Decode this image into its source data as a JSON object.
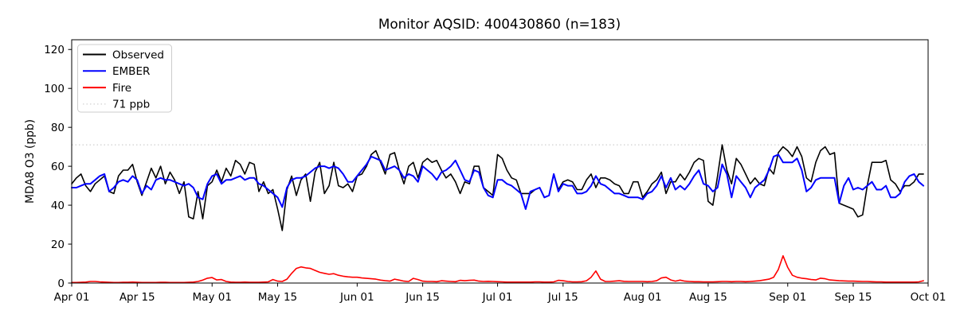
{
  "title": "Monitor AQSID: 400430860 (n=183)",
  "axes": {
    "ylabel": "MDA8 O3 (ppb)",
    "xlabel": "",
    "yticks": [
      0,
      20,
      40,
      60,
      80,
      100,
      120
    ],
    "xtick_labels": [
      "Apr 01",
      "Apr 15",
      "May 01",
      "May 15",
      "Jun 01",
      "Jun 15",
      "Jul 01",
      "Jul 15",
      "Aug 01",
      "Aug 15",
      "Sep 01",
      "Sep 15",
      "Oct 01"
    ],
    "xtick_days": [
      0,
      14,
      30,
      44,
      61,
      75,
      91,
      105,
      122,
      136,
      153,
      167,
      183
    ]
  },
  "legend": {
    "position": "upper left",
    "entries": [
      {
        "label": "Observed",
        "color": "#000000",
        "style": "solid"
      },
      {
        "label": "EMBER",
        "color": "#0000ff",
        "style": "solid"
      },
      {
        "label": "Fire",
        "color": "#ff0000",
        "style": "solid"
      },
      {
        "label": "71 ppb",
        "color": "#d3d3d3",
        "style": "dotted"
      }
    ]
  },
  "chart_data": {
    "type": "line",
    "title": "Monitor AQSID: 400430860 (n=183)",
    "xlabel": "",
    "ylabel": "MDA8 O3 (ppb)",
    "x_start": "Apr 01",
    "x_end": "Sep 30",
    "n_points": 183,
    "ylim": [
      0,
      125
    ],
    "grid": false,
    "legend_position": "upper left",
    "reference_line": {
      "label": "71 ppb",
      "value": 71,
      "color": "#d3d3d3",
      "style": "dotted"
    },
    "series": [
      {
        "name": "Observed",
        "color": "#000000",
        "width": 1.6,
        "values": [
          51,
          54,
          56,
          50,
          47,
          51,
          53,
          55,
          47,
          46,
          55,
          58,
          58,
          61,
          52,
          45,
          52,
          59,
          54,
          60,
          51,
          57,
          53,
          46,
          52,
          34,
          33,
          47,
          33,
          50,
          52,
          58,
          52,
          59,
          55,
          63,
          61,
          56,
          62,
          61,
          47,
          52,
          46,
          48,
          38,
          27,
          48,
          55,
          45,
          53,
          56,
          42,
          57,
          62,
          46,
          50,
          62,
          50,
          49,
          51,
          47,
          55,
          56,
          60,
          66,
          68,
          62,
          56,
          66,
          67,
          58,
          51,
          60,
          62,
          54,
          62,
          64,
          62,
          63,
          58,
          54,
          56,
          52,
          46,
          52,
          51,
          60,
          60,
          49,
          47,
          45,
          66,
          64,
          58,
          54,
          53,
          46,
          46,
          46,
          48,
          49,
          44,
          45,
          56,
          48,
          52,
          53,
          52,
          48,
          48,
          53,
          56,
          49,
          54,
          54,
          53,
          51,
          50,
          46,
          46,
          52,
          52,
          44,
          47,
          51,
          53,
          57,
          46,
          52,
          52,
          56,
          53,
          57,
          62,
          64,
          63,
          42,
          40,
          55,
          71,
          58,
          51,
          64,
          61,
          56,
          51,
          54,
          51,
          50,
          59,
          56,
          67,
          70,
          68,
          65,
          70,
          65,
          54,
          52,
          62,
          68,
          70,
          66,
          67,
          41,
          40,
          39,
          38,
          34,
          35,
          50,
          62,
          62,
          62,
          63,
          53,
          51,
          47,
          50,
          50,
          52,
          56,
          56
        ]
      },
      {
        "name": "EMBER",
        "color": "#0000ff",
        "width": 2.0,
        "values": [
          49,
          49,
          50,
          51,
          51,
          53,
          55,
          56,
          47,
          49,
          52,
          53,
          52,
          55,
          53,
          46,
          50,
          48,
          53,
          54,
          53,
          53,
          52,
          51,
          50,
          51,
          49,
          44,
          43,
          51,
          55,
          56,
          51,
          53,
          53,
          54,
          55,
          53,
          54,
          54,
          51,
          50,
          48,
          46,
          44,
          39,
          49,
          53,
          54,
          54,
          55,
          57,
          59,
          60,
          60,
          59,
          60,
          59,
          56,
          52,
          52,
          55,
          58,
          61,
          65,
          64,
          63,
          58,
          59,
          60,
          58,
          54,
          56,
          55,
          52,
          60,
          58,
          56,
          53,
          57,
          58,
          60,
          63,
          58,
          53,
          52,
          58,
          57,
          49,
          45,
          44,
          53,
          53,
          51,
          50,
          48,
          46,
          38,
          47,
          48,
          49,
          44,
          45,
          56,
          47,
          51,
          50,
          50,
          46,
          46,
          47,
          50,
          55,
          51,
          50,
          48,
          46,
          46,
          45,
          44,
          44,
          44,
          43,
          46,
          47,
          50,
          55,
          49,
          54,
          48,
          50,
          48,
          51,
          55,
          58,
          51,
          50,
          47,
          49,
          61,
          56,
          44,
          55,
          52,
          49,
          44,
          49,
          51,
          53,
          58,
          65,
          66,
          62,
          62,
          62,
          64,
          58,
          47,
          49,
          53,
          54,
          54,
          54,
          54,
          41,
          50,
          54,
          48,
          49,
          48,
          50,
          52,
          48,
          48,
          50,
          44,
          44,
          46,
          52,
          55,
          56,
          52,
          50
        ]
      },
      {
        "name": "Fire",
        "color": "#ff0000",
        "width": 1.6,
        "values": [
          0.3,
          0.3,
          0.4,
          0.5,
          0.8,
          0.8,
          0.6,
          0.5,
          0.4,
          0.3,
          0.3,
          0.4,
          0.4,
          0.5,
          0.4,
          0.3,
          0.3,
          0.3,
          0.3,
          0.4,
          0.4,
          0.3,
          0.3,
          0.3,
          0.3,
          0.4,
          0.5,
          0.8,
          1.5,
          2.5,
          2.8,
          1.6,
          1.8,
          0.8,
          0.5,
          0.4,
          0.4,
          0.5,
          0.4,
          0.4,
          0.4,
          0.5,
          0.6,
          1.8,
          1.0,
          0.8,
          2.0,
          5.0,
          7.5,
          8.3,
          7.8,
          7.5,
          6.5,
          5.5,
          5.0,
          4.5,
          4.8,
          4.0,
          3.5,
          3.2,
          3.0,
          3.0,
          2.6,
          2.4,
          2.2,
          2.0,
          1.5,
          1.2,
          1.0,
          2.0,
          1.5,
          1.0,
          0.8,
          2.4,
          1.8,
          1.0,
          0.8,
          0.8,
          0.7,
          1.2,
          1.0,
          0.8,
          0.7,
          1.4,
          1.2,
          1.4,
          1.5,
          1.0,
          0.8,
          0.9,
          0.8,
          0.7,
          0.6,
          0.5,
          0.5,
          0.5,
          0.5,
          0.5,
          0.5,
          0.6,
          0.6,
          0.5,
          0.5,
          0.6,
          1.4,
          1.2,
          0.8,
          0.6,
          0.6,
          0.7,
          1.2,
          3.0,
          6.2,
          2.0,
          0.8,
          0.8,
          1.0,
          1.2,
          0.9,
          0.8,
          0.8,
          0.8,
          0.8,
          0.7,
          0.8,
          1.2,
          2.6,
          3.0,
          1.6,
          1.0,
          1.5,
          1.0,
          0.8,
          0.7,
          0.7,
          0.6,
          0.6,
          0.6,
          0.7,
          0.8,
          0.8,
          0.7,
          0.8,
          0.8,
          0.7,
          0.8,
          1.0,
          1.2,
          1.6,
          2.0,
          3.0,
          7.0,
          14.0,
          8.0,
          4.0,
          3.0,
          2.5,
          2.2,
          1.8,
          1.6,
          2.5,
          2.2,
          1.6,
          1.4,
          1.2,
          1.1,
          1.0,
          1.0,
          0.9,
          0.8,
          0.8,
          0.7,
          0.6,
          0.6,
          0.5,
          0.5,
          0.5,
          0.5,
          0.5,
          0.5,
          0.5,
          0.6,
          1.2
        ]
      }
    ]
  }
}
